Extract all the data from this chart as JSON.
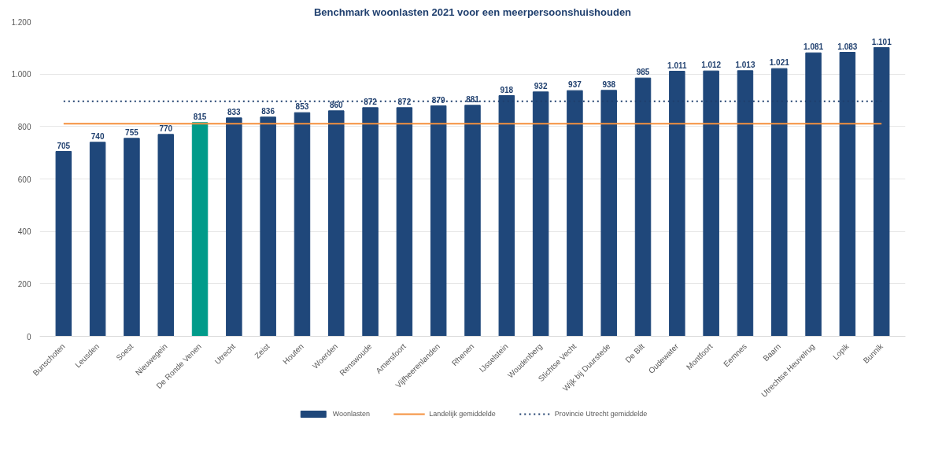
{
  "chart_data": {
    "type": "bar",
    "title": "Benchmark woonlasten 2021 voor een meerpersoonshuishouden",
    "categories": [
      "Bunschoten",
      "Leusden",
      "Soest",
      "Nieuwegein",
      "De Ronde Venen",
      "Utrecht",
      "Zeist",
      "Houten",
      "Woerden",
      "Renswoude",
      "Amersfoort",
      "Vijfheerenlanden",
      "Rhenen",
      "IJsselstein",
      "Woudenberg",
      "Stichtse Vecht",
      "Wijk bij Duurstede",
      "De Bilt",
      "Oudewater",
      "Montfoort",
      "Eemnes",
      "Baarn",
      "Utrechtse Heuvelrug",
      "Lopik",
      "Bunnik"
    ],
    "series": [
      {
        "name": "Woonlasten",
        "color": "#1f477a",
        "colors": [
          "#1f477a",
          "#1f477a",
          "#1f477a",
          "#1f477a",
          "#009b8a",
          "#1f477a",
          "#1f477a",
          "#1f477a",
          "#1f477a",
          "#1f477a",
          "#1f477a",
          "#1f477a",
          "#1f477a",
          "#1f477a",
          "#1f477a",
          "#1f477a",
          "#1f477a",
          "#1f477a",
          "#1f477a",
          "#1f477a",
          "#1f477a",
          "#1f477a",
          "#1f477a",
          "#1f477a",
          "#1f477a"
        ],
        "values": [
          705,
          740,
          755,
          770,
          815,
          833,
          836,
          853,
          860,
          872,
          872,
          879,
          881,
          918,
          932,
          937,
          938,
          985,
          1011,
          1012,
          1013,
          1021,
          1081,
          1083,
          1101
        ],
        "value_labels": [
          "705",
          "740",
          "755",
          "770",
          "815",
          "833",
          "836",
          "853",
          "860",
          "872",
          "872",
          "879",
          "881",
          "918",
          "932",
          "937",
          "938",
          "985",
          "1.011",
          "1.012",
          "1.013",
          "1.021",
          "1.081",
          "1.083",
          "1.101"
        ]
      }
    ],
    "ref_lines": [
      {
        "axis": "y",
        "value": 811,
        "label": "Landelijk gemiddelde",
        "color": "#f5913e",
        "line_style": "solid"
      },
      {
        "axis": "y",
        "value": 896,
        "label": "Provincie Utrecht gemiddelde",
        "color": "#1f3f6e",
        "line_style": "dotted"
      }
    ],
    "ylim": [
      0,
      1200
    ],
    "yticks": [
      0,
      200,
      400,
      600,
      800,
      {
        "value": 1000,
        "label": "1.000"
      },
      {
        "value": 1200,
        "label": "1.200"
      }
    ],
    "grid": "y",
    "legend": "bottom"
  }
}
